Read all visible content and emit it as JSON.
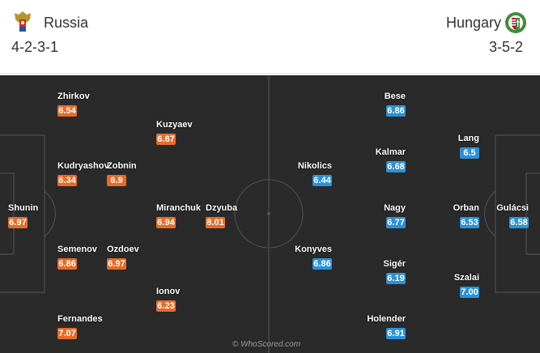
{
  "home": {
    "name": "Russia",
    "formation": "4-2-3-1",
    "players": [
      {
        "name": "Shunin",
        "rating": "6.97"
      },
      {
        "name": "Zhirkov",
        "rating": "6.54"
      },
      {
        "name": "Kudryashov",
        "rating": "6.34"
      },
      {
        "name": "Semenov",
        "rating": "6.86"
      },
      {
        "name": "Fernandes",
        "rating": "7.07"
      },
      {
        "name": "Zobnin",
        "rating": "6.9"
      },
      {
        "name": "Ozdoev",
        "rating": "6.97"
      },
      {
        "name": "Kuzyaev",
        "rating": "6.87"
      },
      {
        "name": "Miranchuk",
        "rating": "6.94"
      },
      {
        "name": "Ionov",
        "rating": "6.23"
      },
      {
        "name": "Dzyuba",
        "rating": "8.01"
      }
    ]
  },
  "away": {
    "name": "Hungary",
    "formation": "3-5-2",
    "players": [
      {
        "name": "Gulácsi",
        "rating": "6.58"
      },
      {
        "name": "Lang",
        "rating": "6.5"
      },
      {
        "name": "Orban",
        "rating": "6.53"
      },
      {
        "name": "Szalai",
        "rating": "7.00"
      },
      {
        "name": "Bese",
        "rating": "6.86"
      },
      {
        "name": "Kalmar",
        "rating": "6.68"
      },
      {
        "name": "Nagy",
        "rating": "6.77"
      },
      {
        "name": "Sigér",
        "rating": "6.19"
      },
      {
        "name": "Holender",
        "rating": "6.91"
      },
      {
        "name": "Nikolics",
        "rating": "6.44"
      },
      {
        "name": "Konyves",
        "rating": "6.86"
      }
    ]
  },
  "watermark": "© WhoScored.com",
  "colors": {
    "pitch": "#2a2a2a",
    "line": "#555555",
    "home_rating": "#e86b28",
    "away_rating": "#2b92d8"
  }
}
